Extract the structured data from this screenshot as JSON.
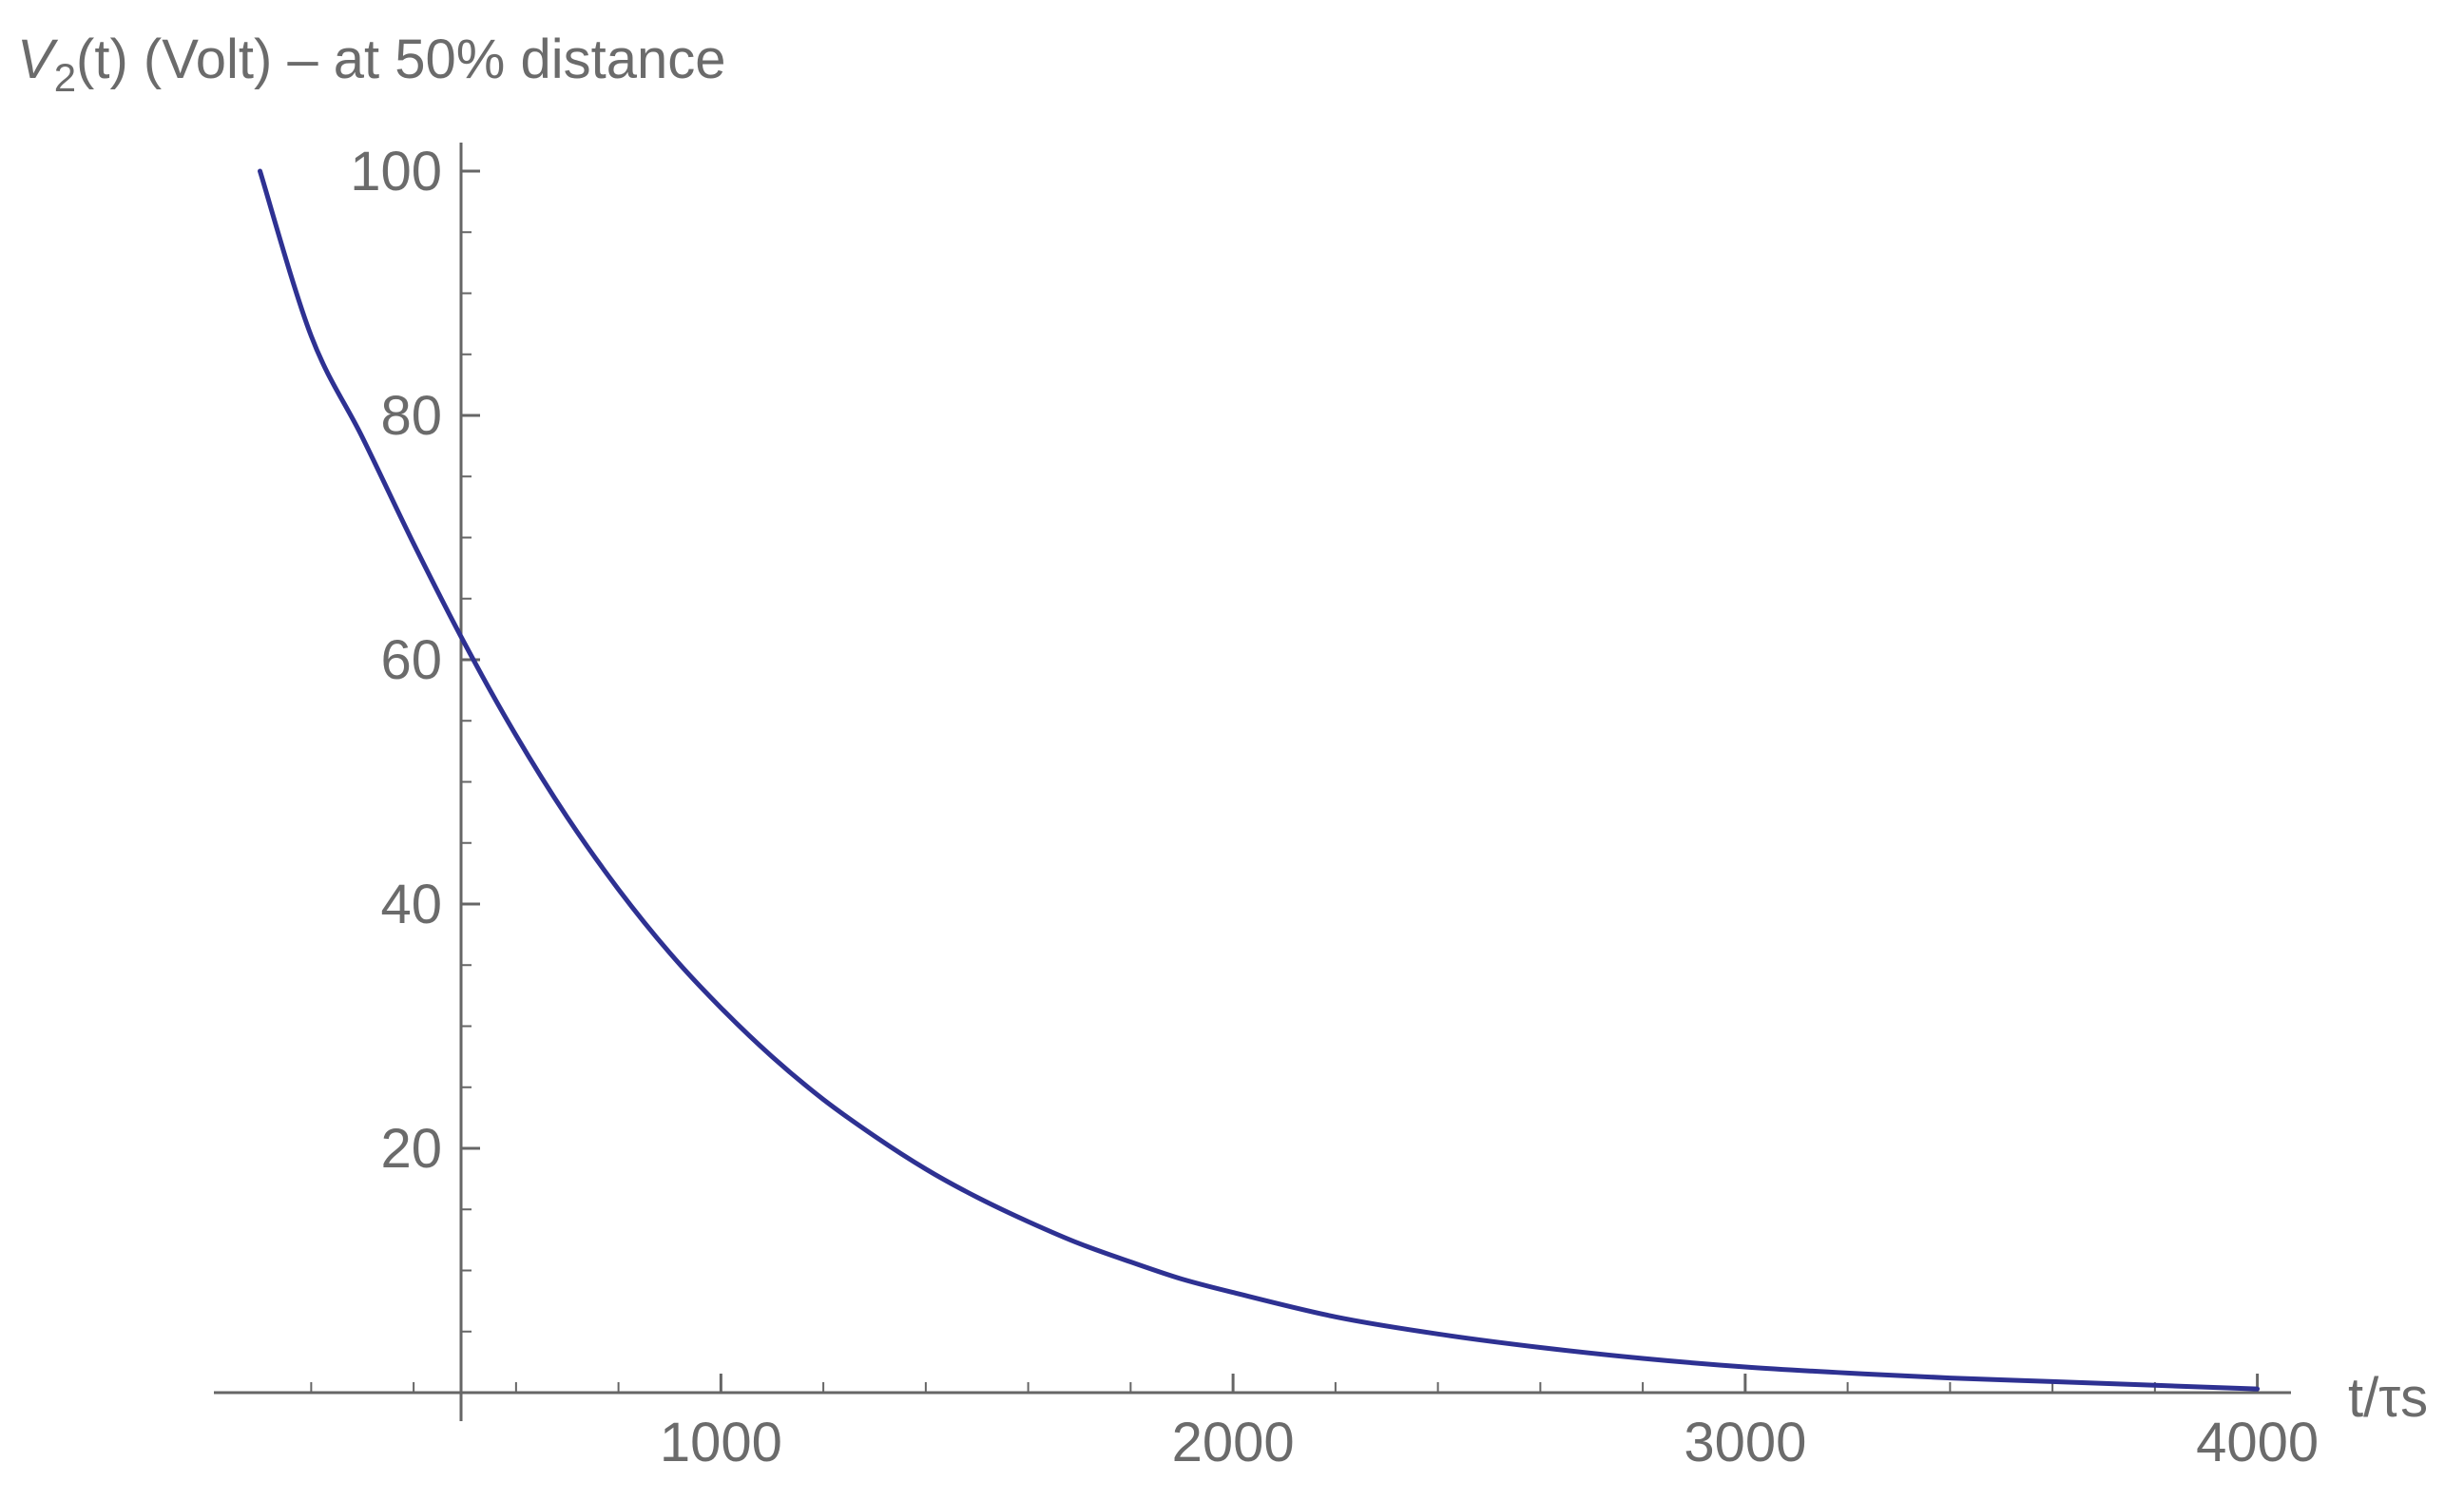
{
  "chart_data": {
    "type": "line",
    "title": "",
    "ylabel": {
      "base": "V",
      "subscript": "2",
      "rest": "(t) (Volt) – at 50% distance"
    },
    "xlabel": "t/τs",
    "xlim": [
      10,
      4010
    ],
    "ylim": [
      0,
      100
    ],
    "x_ticks": [
      1000,
      2000,
      3000,
      4000
    ],
    "x_tick_labels": [
      "1000",
      "2000",
      "3000",
      "4000"
    ],
    "y_ticks": [
      20,
      40,
      60,
      80,
      100
    ],
    "y_tick_labels": [
      "20",
      "40",
      "60",
      "80",
      "100"
    ],
    "series": [
      {
        "color": "#2e3192",
        "x": [
          100,
          200,
          300,
          400,
          500,
          600,
          700,
          800,
          900,
          1000,
          1100,
          1200,
          1300,
          1400,
          1500,
          1600,
          1700,
          1800,
          1900,
          2000,
          2200,
          2400,
          2600,
          2800,
          3000,
          3200,
          3400,
          3600,
          3800,
          4000
        ],
        "y": [
          100.0,
          86.5,
          78.2,
          69.5,
          61.3,
          53.8,
          47.1,
          41.2,
          36.0,
          31.5,
          27.5,
          24.0,
          21.0,
          18.3,
          16.0,
          14.0,
          12.2,
          10.7,
          9.3,
          8.2,
          6.2,
          4.8,
          3.7,
          2.8,
          2.1,
          1.6,
          1.2,
          0.9,
          0.6,
          0.3
        ]
      }
    ],
    "grid": false,
    "legend": "none"
  }
}
